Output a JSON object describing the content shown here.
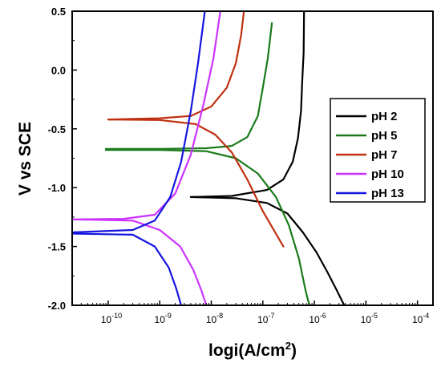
{
  "chart_data": {
    "type": "line",
    "xlabel": "logi(A/cm",
    "xlabel_sup": "2",
    "xlabel_end": ")",
    "ylabel": "V vs SCE",
    "xscale": "log",
    "xlim": [
      2e-11,
      0.0002
    ],
    "ylim": [
      -2.0,
      0.5
    ],
    "yticks": [
      0.5,
      0.0,
      -0.5,
      -1.0,
      -1.5,
      -2.0
    ],
    "ytick_labels": [
      "0.5",
      "0.0",
      "-0.5",
      "-1.0",
      "-1.5",
      "-2.0"
    ],
    "xticks": [
      -10,
      -9,
      -8,
      -7,
      -6,
      -5,
      -4
    ],
    "xtick_base": "10",
    "legend_position": "right",
    "grid": false,
    "series": [
      {
        "name": "pH 2",
        "color": "#000000",
        "points": [
          [
            4e-09,
            -1.08
          ],
          [
            2.5e-08,
            -1.07
          ],
          [
            1.2e-07,
            -1.02
          ],
          [
            2.5e-07,
            -0.93
          ],
          [
            3.8e-07,
            -0.78
          ],
          [
            4.8e-07,
            -0.58
          ],
          [
            5.5e-07,
            -0.35
          ],
          [
            5.8e-07,
            -0.1
          ],
          [
            6.2e-07,
            0.15
          ],
          [
            6.3e-07,
            0.5
          ]
        ]
      },
      {
        "name": "pH 2",
        "color": "#000000",
        "points": [
          [
            4e-09,
            -1.08
          ],
          [
            3e-08,
            -1.09
          ],
          [
            1.2e-07,
            -1.13
          ],
          [
            3e-07,
            -1.22
          ],
          [
            6e-07,
            -1.38
          ],
          [
            1.1e-06,
            -1.55
          ],
          [
            1.8e-06,
            -1.72
          ],
          [
            2.7e-06,
            -1.87
          ],
          [
            3.8e-06,
            -2.0
          ]
        ]
      },
      {
        "name": "pH 5",
        "color": "#1a7a1a",
        "points": [
          [
            9e-11,
            -0.67
          ],
          [
            1e-09,
            -0.67
          ],
          [
            8e-09,
            -0.665
          ],
          [
            2.5e-08,
            -0.645
          ],
          [
            5e-08,
            -0.57
          ],
          [
            8e-08,
            -0.39
          ],
          [
            1e-07,
            -0.15
          ],
          [
            1.25e-07,
            0.1
          ],
          [
            1.5e-07,
            0.4
          ]
        ]
      },
      {
        "name": "pH 5",
        "color": "#1a7a1a",
        "points": [
          [
            9e-11,
            -0.68
          ],
          [
            1e-09,
            -0.68
          ],
          [
            8e-09,
            -0.69
          ],
          [
            3e-08,
            -0.75
          ],
          [
            8e-08,
            -0.88
          ],
          [
            1.8e-07,
            -1.08
          ],
          [
            3.2e-07,
            -1.32
          ],
          [
            5e-07,
            -1.6
          ],
          [
            6.8e-07,
            -1.88
          ],
          [
            8e-07,
            -2.0
          ]
        ]
      },
      {
        "name": "pH 7",
        "color": "#c03010",
        "points": [
          [
            1e-10,
            -0.42
          ],
          [
            1e-09,
            -0.41
          ],
          [
            4e-09,
            -0.39
          ],
          [
            1e-08,
            -0.31
          ],
          [
            2e-08,
            -0.15
          ],
          [
            3e-08,
            0.06
          ],
          [
            3.8e-08,
            0.3
          ],
          [
            4.3e-08,
            0.5
          ]
        ]
      },
      {
        "name": "pH 7",
        "color": "#c03010",
        "points": [
          [
            1e-10,
            -0.42
          ],
          [
            1e-09,
            -0.425
          ],
          [
            5e-09,
            -0.46
          ],
          [
            1.2e-08,
            -0.55
          ],
          [
            2.5e-08,
            -0.7
          ],
          [
            5e-08,
            -0.93
          ],
          [
            1e-07,
            -1.2
          ],
          [
            2.5e-07,
            -1.5
          ]
        ]
      },
      {
        "name": "pH 10",
        "color": "#cc33ff",
        "points": [
          [
            2e-11,
            -1.27
          ],
          [
            2e-10,
            -1.265
          ],
          [
            8e-10,
            -1.23
          ],
          [
            2e-09,
            -1.05
          ],
          [
            4e-09,
            -0.72
          ],
          [
            7e-09,
            -0.3
          ],
          [
            1.1e-08,
            0.1
          ],
          [
            1.5e-08,
            0.5
          ]
        ]
      },
      {
        "name": "pH 10",
        "color": "#cc33ff",
        "points": [
          [
            2e-11,
            -1.27
          ],
          [
            3e-10,
            -1.28
          ],
          [
            1e-09,
            -1.36
          ],
          [
            2.5e-09,
            -1.5
          ],
          [
            4.5e-09,
            -1.7
          ],
          [
            6.5e-09,
            -1.88
          ],
          [
            8e-09,
            -2.0
          ]
        ]
      },
      {
        "name": "pH 13",
        "color": "#1515e0",
        "points": [
          [
            2e-11,
            -1.38
          ],
          [
            3e-10,
            -1.36
          ],
          [
            8e-10,
            -1.28
          ],
          [
            1.6e-09,
            -1.08
          ],
          [
            2.6e-09,
            -0.78
          ],
          [
            4e-09,
            -0.35
          ],
          [
            5.5e-09,
            0.05
          ],
          [
            7.5e-09,
            0.5
          ]
        ]
      },
      {
        "name": "pH 13",
        "color": "#1515e0",
        "points": [
          [
            2e-11,
            -1.39
          ],
          [
            3e-10,
            -1.4
          ],
          [
            8e-10,
            -1.5
          ],
          [
            1.5e-09,
            -1.68
          ],
          [
            2.1e-09,
            -1.86
          ],
          [
            2.6e-09,
            -2.0
          ]
        ]
      }
    ],
    "legend": [
      {
        "label": "pH 2",
        "color": "#000000"
      },
      {
        "label": "pH 5",
        "color": "#1a7a1a"
      },
      {
        "label": "pH 7",
        "color": "#c03010"
      },
      {
        "label": "pH 10",
        "color": "#cc33ff"
      },
      {
        "label": "pH 13",
        "color": "#1515e0"
      }
    ]
  }
}
